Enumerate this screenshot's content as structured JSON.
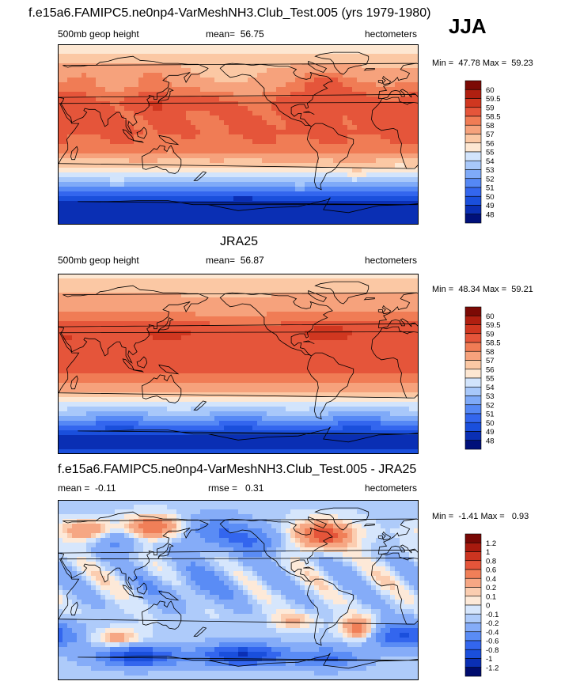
{
  "header": {
    "title": "f.e15a6.FAMIPC5.ne0np4-VarMeshNH3.Club_Test.005 (yrs 1979-1980)",
    "season": "JJA"
  },
  "colors": {
    "ocean_outline": "#000000",
    "background": "#ffffff"
  },
  "chart_data": [
    {
      "type": "heatmap",
      "title": "",
      "left_label": "500mb geop height",
      "center_label": "mean=  56.75",
      "right_label": "hectometers",
      "min_max": "Min =  47.78 Max =  59.23",
      "field": "model_z500",
      "value_range": [
        47.78,
        59.23
      ],
      "levels": [
        "48",
        "49",
        "50",
        "51",
        "52",
        "53",
        "54",
        "55",
        "56",
        "57",
        "58",
        "58.5",
        "59",
        "59.5",
        "60"
      ],
      "colors": [
        "#00107a",
        "#0a2fb4",
        "#1a4fdc",
        "#3366ee",
        "#5588f5",
        "#7faaf8",
        "#a8c8fa",
        "#d2e4fc",
        "#fde7d2",
        "#fbc8a4",
        "#f6a27c",
        "#f07c55",
        "#e5553a",
        "#d03720",
        "#b01f10",
        "#7c0a05"
      ]
    },
    {
      "type": "heatmap",
      "title": "JRA25",
      "left_label": "500mb geop height",
      "center_label": "mean=  56.87",
      "right_label": "hectometers",
      "min_max": "Min =  48.34 Max =  59.21",
      "field": "obs_z500",
      "value_range": [
        48.34,
        59.21
      ],
      "levels": [
        "48",
        "49",
        "50",
        "51",
        "52",
        "53",
        "54",
        "55",
        "56",
        "57",
        "58",
        "58.5",
        "59",
        "59.5",
        "60"
      ],
      "colors": [
        "#00107a",
        "#0a2fb4",
        "#1a4fdc",
        "#3366ee",
        "#5588f5",
        "#7faaf8",
        "#a8c8fa",
        "#d2e4fc",
        "#fde7d2",
        "#fbc8a4",
        "#f6a27c",
        "#f07c55",
        "#e5553a",
        "#d03720",
        "#b01f10",
        "#7c0a05"
      ]
    },
    {
      "type": "heatmap",
      "title": "f.e15a6.FAMIPC5.ne0np4-VarMeshNH3.Club_Test.005 - JRA25",
      "left_label": "mean =  -0.11",
      "center_label": "rmse =   0.31",
      "right_label": "hectometers",
      "min_max": "Min =  -1.41 Max =   0.93",
      "field": "difference",
      "value_range": [
        -1.41,
        0.93
      ],
      "levels": [
        "-1.2",
        "-1",
        "-0.8",
        "-0.6",
        "-0.4",
        "-0.2",
        "-0.1",
        "0",
        "0.1",
        "0.2",
        "0.4",
        "0.6",
        "0.8",
        "1",
        "1.2"
      ],
      "colors": [
        "#000c6e",
        "#0a2fb4",
        "#1a4fdc",
        "#3366ee",
        "#5a8cf5",
        "#85acf8",
        "#aecbfa",
        "#d6e6fc",
        "#fde9d8",
        "#fbcdb0",
        "#f6a784",
        "#f07f58",
        "#e5553a",
        "#cc3420",
        "#a81a0e",
        "#780805"
      ]
    }
  ]
}
